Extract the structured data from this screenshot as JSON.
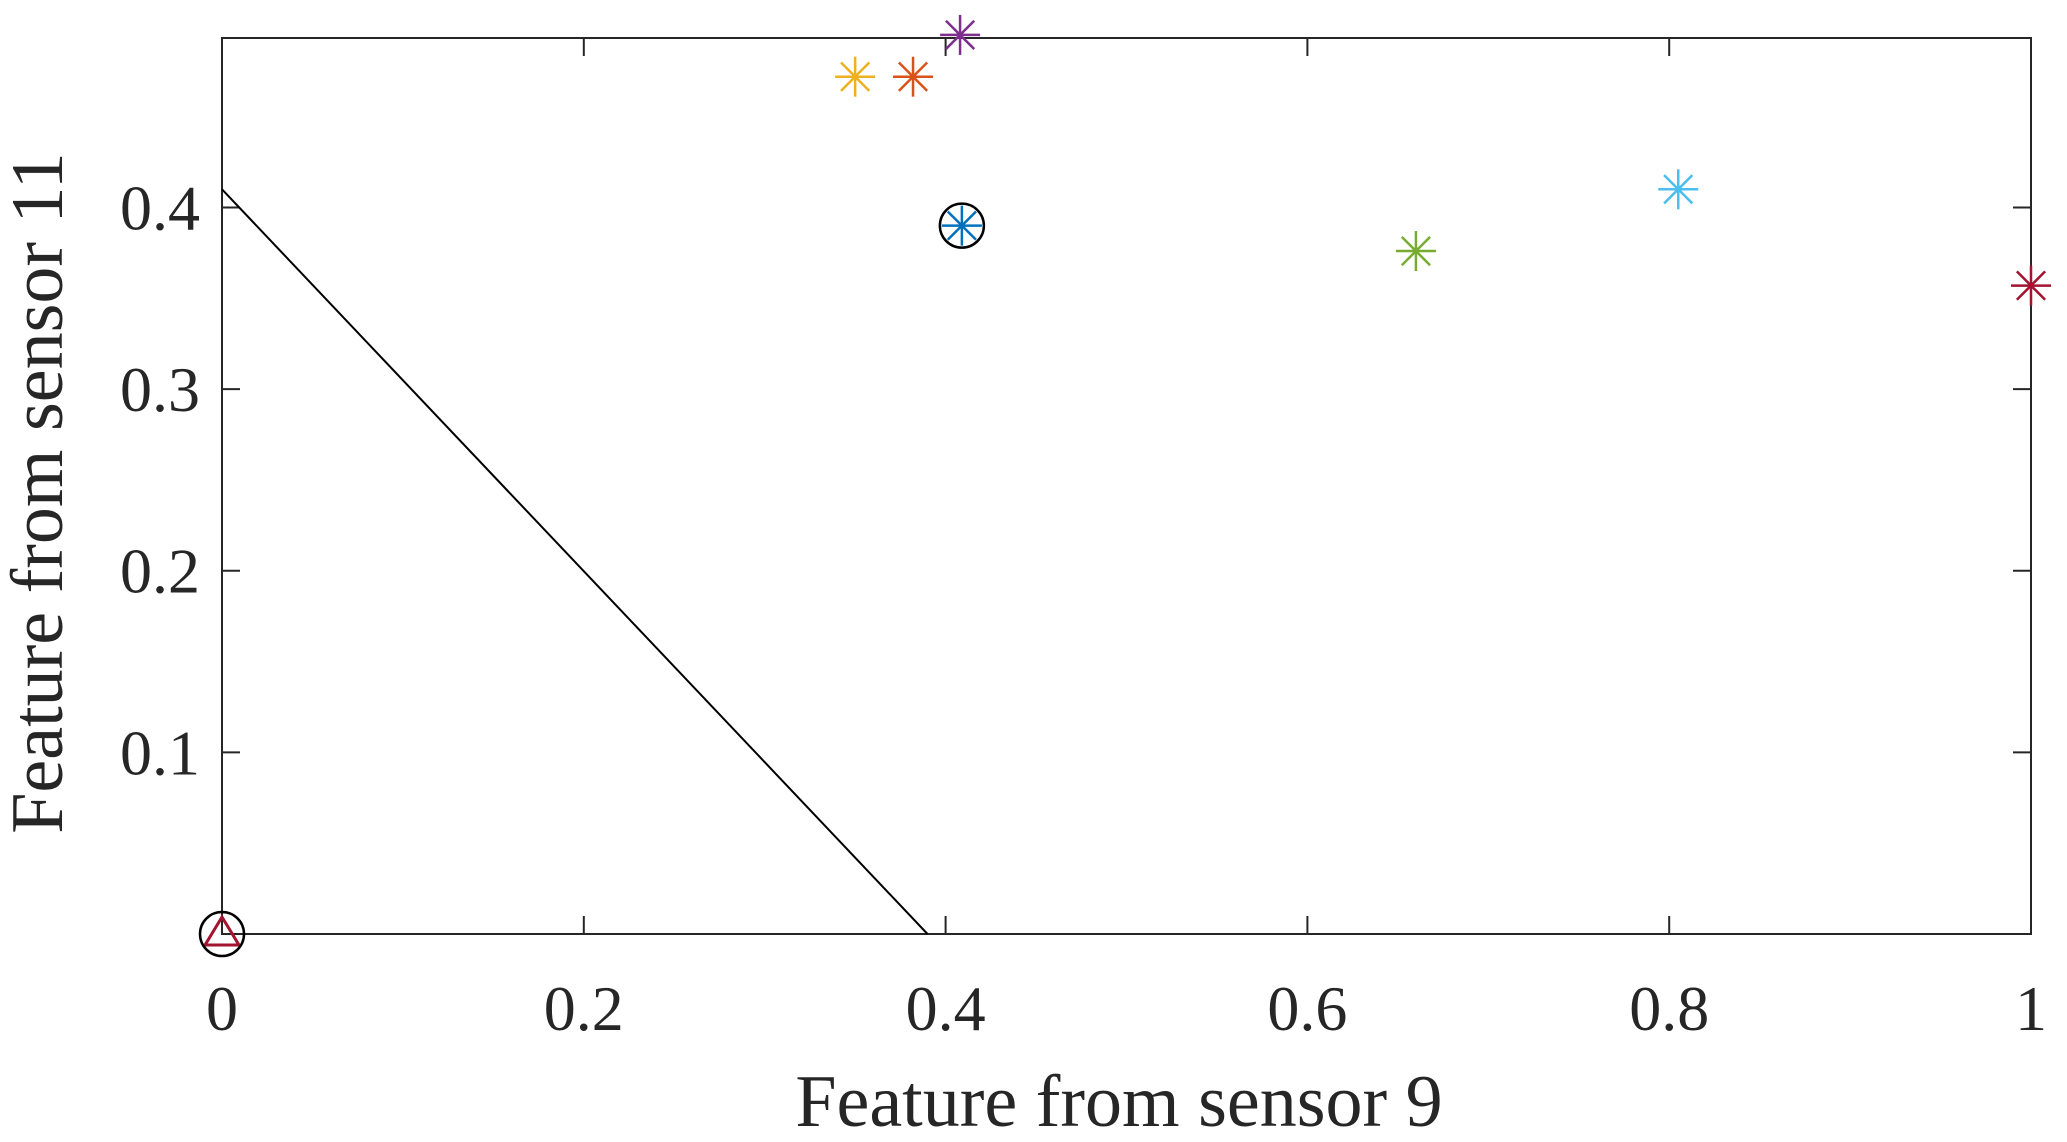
{
  "chart_data": {
    "type": "scatter",
    "title": "",
    "xlabel": "Feature from sensor 9",
    "ylabel": "Feature from sensor 11",
    "xlim": [
      0,
      1
    ],
    "ylim": [
      0,
      0.4933
    ],
    "grid": false,
    "xticks": [
      0,
      0.2,
      0.4,
      0.6,
      0.8,
      1
    ],
    "xtick_labels": [
      "0",
      "0.2",
      "0.4",
      "0.6",
      "0.8",
      "1"
    ],
    "yticks": [
      0.1,
      0.2,
      0.3,
      0.4
    ],
    "ytick_labels": [
      "0.1",
      "0.2",
      "0.3",
      "0.4"
    ],
    "star_points": [
      {
        "x": 0.35,
        "y": 0.472,
        "color": "#EDB120"
      },
      {
        "x": 0.382,
        "y": 0.472,
        "color": "#D95319"
      },
      {
        "x": 0.408,
        "y": 0.495,
        "color": "#7E2F8E"
      },
      {
        "x": 0.409,
        "y": 0.39,
        "color": "#0072BD"
      },
      {
        "x": 0.66,
        "y": 0.376,
        "color": "#77AC30"
      },
      {
        "x": 0.805,
        "y": 0.41,
        "color": "#4DBEEE"
      },
      {
        "x": 1.0,
        "y": 0.357,
        "color": "#A2142F"
      }
    ],
    "circle_markers": [
      {
        "x": 0.409,
        "y": 0.39,
        "color": "#000000"
      },
      {
        "x": 0.0,
        "y": 0.0,
        "color": "#000000"
      }
    ],
    "triangle_markers": [
      {
        "x": 0.0,
        "y": 0.0,
        "color": "#A2142F"
      }
    ],
    "lines": [
      {
        "x": [
          0,
          0.39
        ],
        "y": [
          0.41,
          0
        ],
        "color": "#000000"
      }
    ]
  }
}
